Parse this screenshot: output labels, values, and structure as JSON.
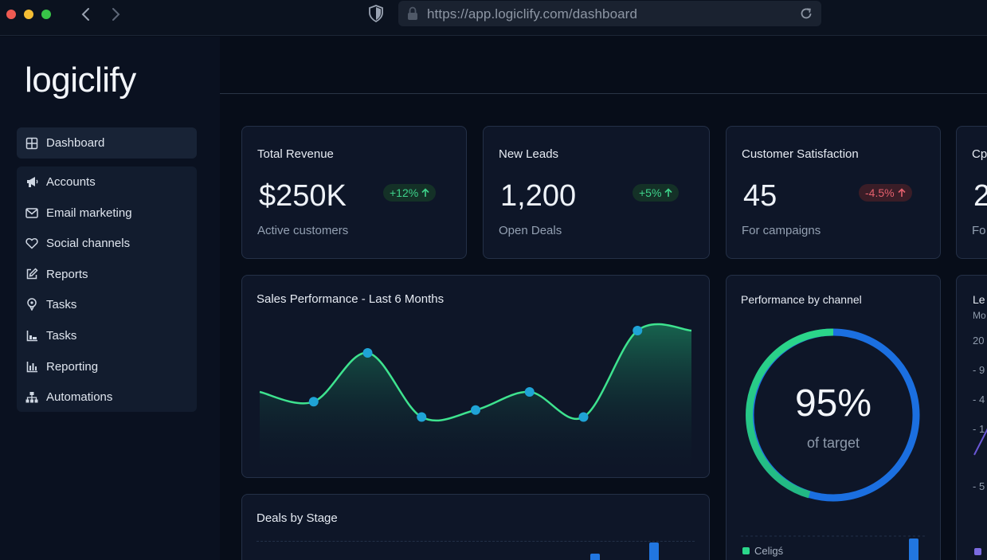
{
  "browser": {
    "url": "https://app.logiclify.com/dashboard"
  },
  "app": {
    "logo": "logiclify"
  },
  "sidebar": {
    "active_item": {
      "label": "Dashboard",
      "icon": "grid-icon"
    },
    "items": [
      {
        "label": "Accounts",
        "icon": "megaphone-icon"
      },
      {
        "label": "Email marketing",
        "icon": "envelope-icon"
      },
      {
        "label": "Social channels",
        "icon": "heart-icon"
      },
      {
        "label": "Reports",
        "icon": "edit-icon"
      },
      {
        "label": "Tasks",
        "icon": "pin-icon"
      },
      {
        "label": "Tasks",
        "icon": "list-chart-icon"
      },
      {
        "label": "Reporting",
        "icon": "bar-chart-icon"
      },
      {
        "label": "Automations",
        "icon": "sitemap-icon"
      }
    ]
  },
  "stats": [
    {
      "title": "Total Revenue",
      "value": "$250K",
      "change": "+12%",
      "trend": "up",
      "subtitle": "Active customers"
    },
    {
      "title": "New Leads",
      "value": "1,200",
      "change": "+5%",
      "trend": "up",
      "subtitle": "Open Deals"
    },
    {
      "title": "Customer Satisfaction",
      "value": "45",
      "change": "-4.5%",
      "trend": "down",
      "subtitle": "For campaigns"
    },
    {
      "title": "Cp",
      "value": "2",
      "subtitle": "Fo"
    }
  ],
  "sales_chart": {
    "title": "Sales Performance - Last 6 Months"
  },
  "deals_card": {
    "title": "Deals by Stage"
  },
  "performance": {
    "title": "Performance by channel",
    "value": "95%",
    "caption": "of target",
    "legend": "Celigś"
  },
  "clipped_card": {
    "title": "Le",
    "sub": "Mo",
    "ticks": [
      "20",
      "- 9",
      "- 4",
      "- 1",
      "- 5"
    ]
  },
  "colors": {
    "accent_green": "#2bd68a",
    "accent_blue": "#2176e0",
    "positive": "#3ed38b",
    "negative": "#e4606d"
  },
  "chart_data": {
    "type": "area",
    "title": "Sales Performance - Last 6 Months",
    "x": [
      0,
      1,
      2,
      3,
      4,
      5,
      6,
      7,
      8
    ],
    "values": [
      48,
      41,
      76,
      30,
      35,
      48,
      30,
      92,
      92
    ],
    "markers": [
      1,
      2,
      3,
      4,
      5,
      6,
      7
    ],
    "ylim": [
      0,
      100
    ],
    "grid": false
  }
}
